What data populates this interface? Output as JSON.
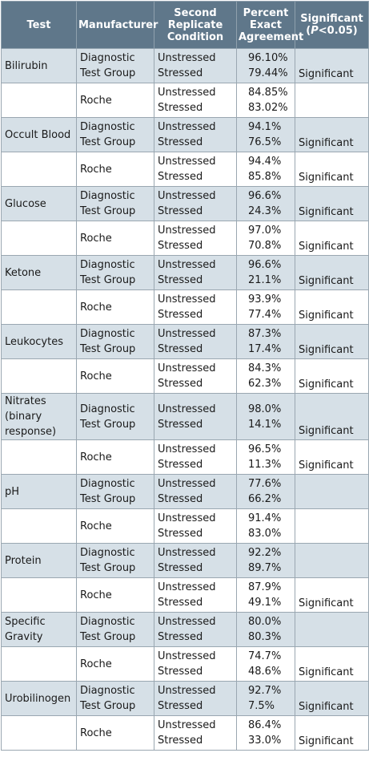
{
  "table": {
    "headers": [
      "Test",
      "Manufacturer",
      "Second Replicate Condition",
      "Percent Exact Agreement"
    ],
    "sig_header": {
      "text": "Significant",
      "open": "(",
      "p": "P",
      "rest": "<0.05)"
    },
    "rows": [
      {
        "test": "Bilirubin",
        "manufacturer": "Diagnostic Test Group",
        "conditions": [
          "Unstressed",
          "Stressed"
        ],
        "agreement": [
          "96.10%",
          "79.44%"
        ],
        "significant": "Significant"
      },
      {
        "manufacturer": "Roche",
        "conditions": [
          "Unstressed",
          "Stressed"
        ],
        "agreement": [
          "84.85%",
          "83.02%"
        ]
      },
      {
        "test": "Occult Blood",
        "manufacturer": "Diagnostic Test Group",
        "conditions": [
          "Unstressed",
          "Stressed"
        ],
        "agreement": [
          "94.1%",
          "76.5%"
        ],
        "significant": "Significant"
      },
      {
        "manufacturer": "Roche",
        "conditions": [
          "Unstressed",
          "Stressed"
        ],
        "agreement": [
          "94.4%",
          "85.8%"
        ],
        "significant": "Significant"
      },
      {
        "test": "Glucose",
        "manufacturer": "Diagnostic Test Group",
        "conditions": [
          "Unstressed",
          "Stressed"
        ],
        "agreement": [
          "96.6%",
          "24.3%"
        ],
        "significant": "Significant"
      },
      {
        "manufacturer": "Roche",
        "conditions": [
          "Unstressed",
          "Stressed"
        ],
        "agreement": [
          "97.0%",
          "70.8%"
        ],
        "significant": "Significant"
      },
      {
        "test": "Ketone",
        "manufacturer": "Diagnostic Test Group",
        "conditions": [
          "Unstressed",
          "Stressed"
        ],
        "agreement": [
          "96.6%",
          "21.1%"
        ],
        "significant": "Significant"
      },
      {
        "manufacturer": "Roche",
        "conditions": [
          "Unstressed",
          "Stressed"
        ],
        "agreement": [
          "93.9%",
          "77.4%"
        ],
        "significant": "Significant"
      },
      {
        "test": "Leukocytes",
        "manufacturer": "Diagnostic Test Group",
        "conditions": [
          "Unstressed",
          "Stressed"
        ],
        "agreement": [
          "87.3%",
          "17.4%"
        ],
        "significant": "Significant"
      },
      {
        "manufacturer": "Roche",
        "conditions": [
          "Unstressed",
          "Stressed"
        ],
        "agreement": [
          "84.3%",
          "62.3%"
        ],
        "significant": "Significant"
      },
      {
        "test": "Nitrates (binary response)",
        "manufacturer": "Diagnostic Test Group",
        "conditions": [
          "Unstressed",
          "Stressed"
        ],
        "agreement": [
          "98.0%",
          "14.1%"
        ],
        "significant": "Significant"
      },
      {
        "manufacturer": "Roche",
        "conditions": [
          "Unstressed",
          "Stressed"
        ],
        "agreement": [
          "96.5%",
          "11.3%"
        ],
        "significant": "Significant"
      },
      {
        "test": "pH",
        "manufacturer": "Diagnostic Test Group",
        "conditions": [
          "Unstressed",
          "Stressed"
        ],
        "agreement": [
          "77.6%",
          "66.2%"
        ]
      },
      {
        "manufacturer": "Roche",
        "conditions": [
          "Unstressed",
          "Stressed"
        ],
        "agreement": [
          "91.4%",
          "83.0%"
        ]
      },
      {
        "test": "Protein",
        "manufacturer": "Diagnostic Test Group",
        "conditions": [
          "Unstressed",
          "Stressed"
        ],
        "agreement": [
          "92.2%",
          "89.7%"
        ]
      },
      {
        "manufacturer": "Roche",
        "conditions": [
          "Unstressed",
          "Stressed"
        ],
        "agreement": [
          "87.9%",
          "49.1%"
        ],
        "significant": "Significant"
      },
      {
        "test": "Specific Gravity",
        "manufacturer": "Diagnostic Test Group",
        "conditions": [
          "Unstressed",
          "Stressed"
        ],
        "agreement": [
          "80.0%",
          "80.3%"
        ]
      },
      {
        "manufacturer": "Roche",
        "conditions": [
          "Unstressed",
          "Stressed"
        ],
        "agreement": [
          "74.7%",
          "48.6%"
        ],
        "significant": "Significant"
      },
      {
        "test": "Urobilinogen",
        "manufacturer": "Diagnostic Test Group",
        "conditions": [
          "Unstressed",
          "Stressed"
        ],
        "agreement": [
          "92.7%",
          "7.5%"
        ],
        "significant": "Significant"
      },
      {
        "manufacturer": "Roche",
        "conditions": [
          "Unstressed",
          "Stressed"
        ],
        "agreement": [
          "86.4%",
          "33.0%"
        ],
        "significant": "Significant"
      }
    ]
  }
}
